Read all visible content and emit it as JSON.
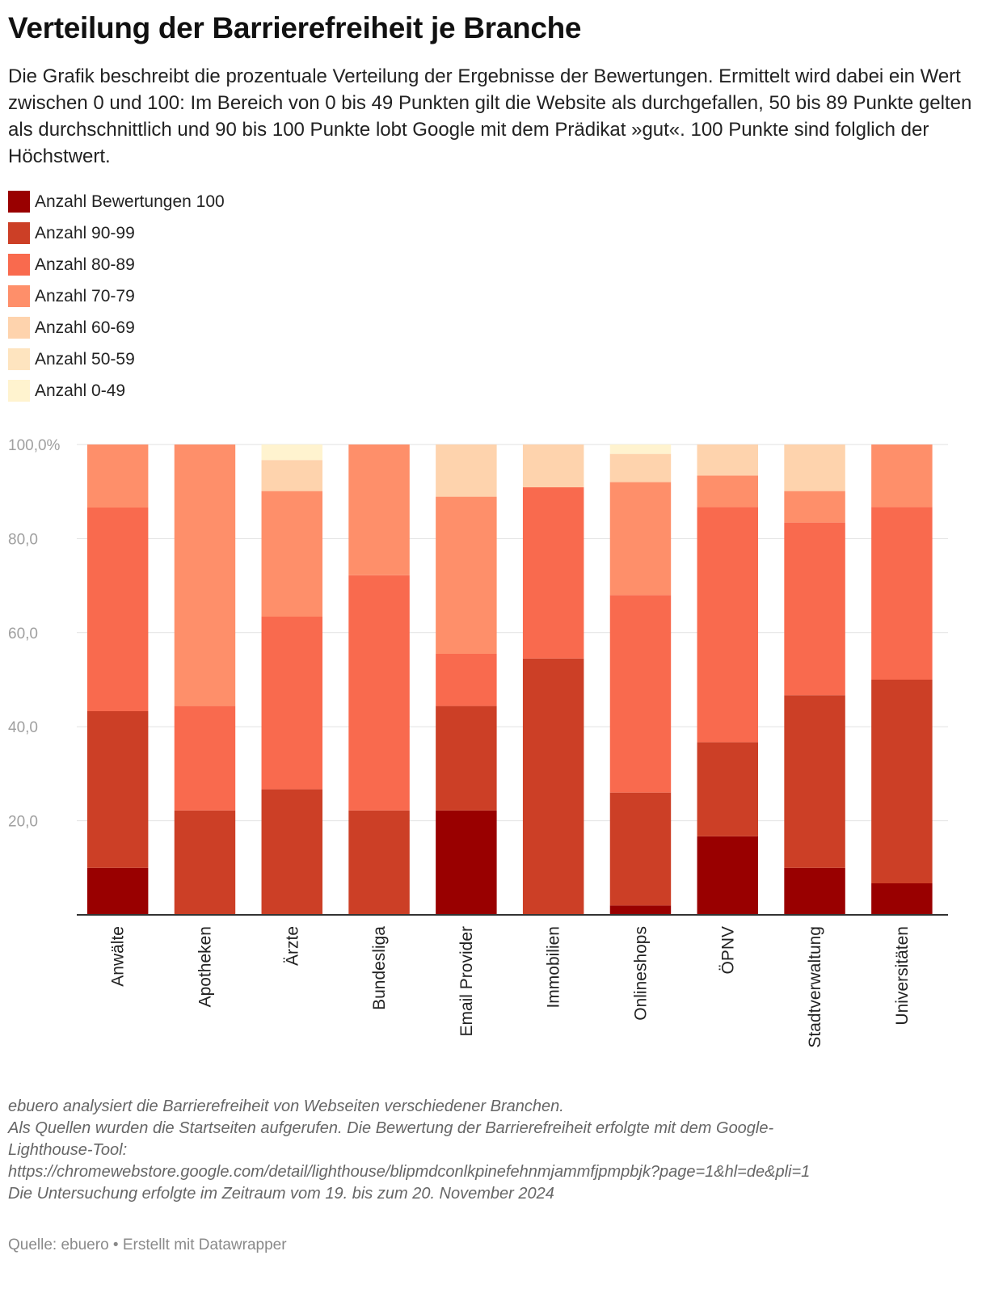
{
  "title": "Verteilung der Barrierefreiheit je Branche",
  "subtitle": "Die Grafik beschreibt die prozentuale Verteilung der Ergebnisse der Bewertungen. Ermittelt wird dabei ein Wert zwischen 0 und 100: Im Bereich von 0 bis 49 Punkten gilt die Website als durchgefallen, 50 bis 89 Punkte gelten als durchschnittlich und 90 bis 100 Punkte lobt Google mit dem Prädikat »gut«. 100 Punkte sind folglich der Höchstwert.",
  "notes": [
    "ebuero analysiert die Barrierefreiheit von Webseiten verschiedener Branchen.",
    "Als Quellen wurden die Startseiten aufgerufen. Die Bewertung der Barrierefreiheit erfolgte mit dem Google-",
    "Lighthouse-Tool:",
    "https://chromewebstore.google.com/detail/lighthouse/blipmdconlkpinefehnmjammfjpmpbjk?page=1&hl=de&pli=1",
    "Die Untersuchung erfolgte im Zeitraum vom 19. bis zum 20. November 2024"
  ],
  "source": "Quelle: ebuero • Erstellt mit Datawrapper",
  "chart_data": {
    "type": "bar",
    "stacked": true,
    "categories": [
      "Anwälte",
      "Apotheken",
      "Ärzte",
      "Bundesliga",
      "Email Provider",
      "Immobilien",
      "Onlineshops",
      "ÖPNV",
      "Stadtverwaltung",
      "Universitäten"
    ],
    "ylim": [
      0,
      100
    ],
    "y_ticks": [
      20,
      40,
      60,
      80,
      100
    ],
    "y_tick_labels": [
      "20,0",
      "40,0",
      "60,0",
      "80,0",
      "100,0%"
    ],
    "grid": true,
    "legend_position": "top-left",
    "series": [
      {
        "name": "Anzahl Bewertungen 100",
        "color": "#990000",
        "values": [
          10,
          0,
          0,
          0,
          22.2,
          0,
          2,
          16.7,
          10,
          6.7
        ]
      },
      {
        "name": "Anzahl 90-99",
        "color": "#cc3f26",
        "values": [
          33.3,
          22.2,
          26.7,
          22.2,
          22.2,
          54.5,
          24,
          20,
          36.7,
          43.3
        ]
      },
      {
        "name": "Anzahl 80-89",
        "color": "#f96a4e",
        "values": [
          43.3,
          22.2,
          36.7,
          50,
          11.1,
          36.4,
          42,
          50,
          36.7,
          36.7
        ]
      },
      {
        "name": "Anzahl 70-79",
        "color": "#fe8f6a",
        "values": [
          13.4,
          55.6,
          26.7,
          27.8,
          33.4,
          0,
          24,
          6.7,
          6.7,
          13.3
        ]
      },
      {
        "name": "Anzahl 60-69",
        "color": "#fed3ad",
        "values": [
          0,
          0,
          6.6,
          0,
          11.1,
          9.1,
          6,
          6.6,
          9.9,
          0
        ]
      },
      {
        "name": "Anzahl 50-59",
        "color": "#fee4bf",
        "values": [
          0,
          0,
          0,
          0,
          0,
          0,
          0,
          0,
          0,
          0
        ]
      },
      {
        "name": "Anzahl 0-49",
        "color": "#fff3cf",
        "values": [
          0,
          0,
          3.3,
          0,
          0,
          0,
          2,
          0,
          0,
          0
        ]
      }
    ]
  }
}
